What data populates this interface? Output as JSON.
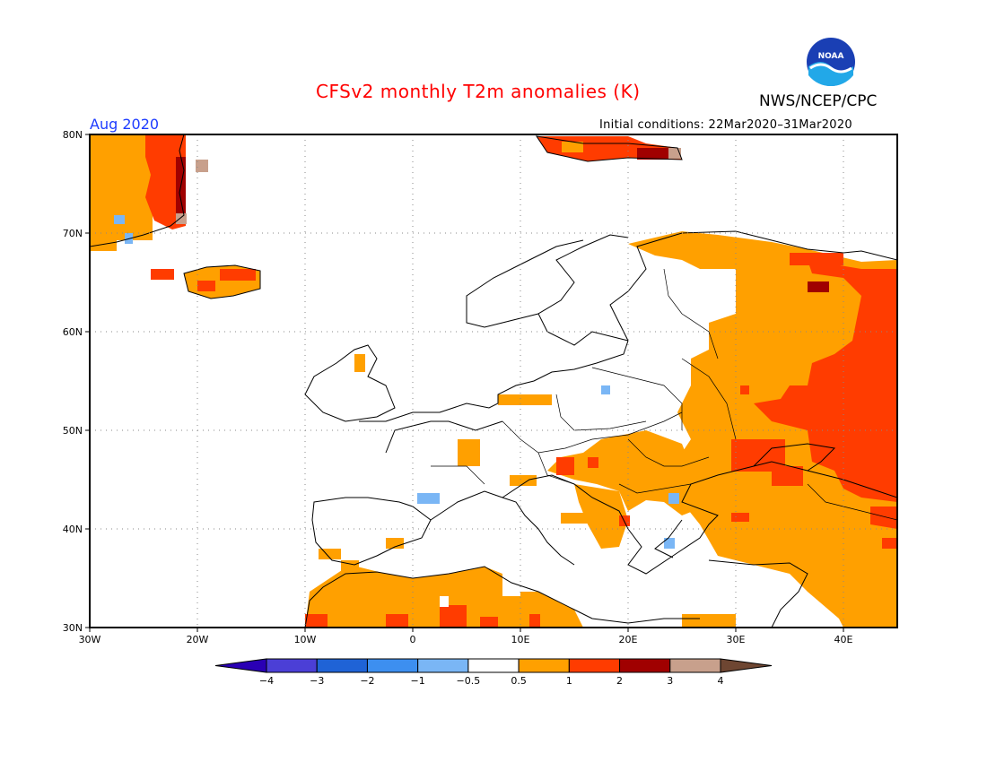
{
  "title": "CFSv2 monthly T2m anomalies (K)",
  "agency": "NWS/NCEP/CPC",
  "logo_text": "NOAA",
  "month": "Aug 2020",
  "initial_conditions": "Initial conditions: 22Mar2020–31Mar2020",
  "lat_labels": [
    "80N",
    "70N",
    "60N",
    "50N",
    "40N",
    "30N"
  ],
  "lon_labels": [
    "30W",
    "20W",
    "10W",
    "0",
    "10E",
    "20E",
    "30E",
    "40E"
  ],
  "colorbar": {
    "labels": [
      "−4",
      "−3",
      "−2",
      "−1",
      "−0.5",
      "0.5",
      "1",
      "2",
      "3",
      "4"
    ],
    "colors": [
      "#2a00b4",
      "#4b3fd6",
      "#1f63d6",
      "#3d8ff0",
      "#7ab6f5",
      "#ffffff",
      "#ffa000",
      "#ff3c00",
      "#a00000",
      "#c8a08c",
      "#6e4632"
    ]
  },
  "map_data": {
    "lat_range": [
      30,
      80
    ],
    "lon_range": [
      -30,
      45
    ],
    "anomaly_regions": [
      {
        "level": "1",
        "color": "#ffa000",
        "desc": "Greenland coast"
      },
      {
        "level": "2",
        "color": "#ff3c00",
        "desc": "East Greenland"
      },
      {
        "level": "3",
        "color": "#a00000",
        "desc": "East Greenland coast"
      },
      {
        "level": "1",
        "color": "#ffa000",
        "desc": "Iceland"
      },
      {
        "level": "1",
        "color": "#ffa000",
        "desc": "Western Russia"
      },
      {
        "level": "2",
        "color": "#ff3c00",
        "desc": "Russia/Kazakhstan"
      },
      {
        "level": "1",
        "color": "#ffa000",
        "desc": "Balkans / Central Europe"
      },
      {
        "level": "1",
        "color": "#ffa000",
        "desc": "North Africa"
      },
      {
        "level": "1",
        "color": "#ffa000",
        "desc": "Turkey / Middle East"
      },
      {
        "level": "-0.5",
        "color": "#7ab6f5",
        "desc": "Isolated cool cells"
      }
    ]
  }
}
